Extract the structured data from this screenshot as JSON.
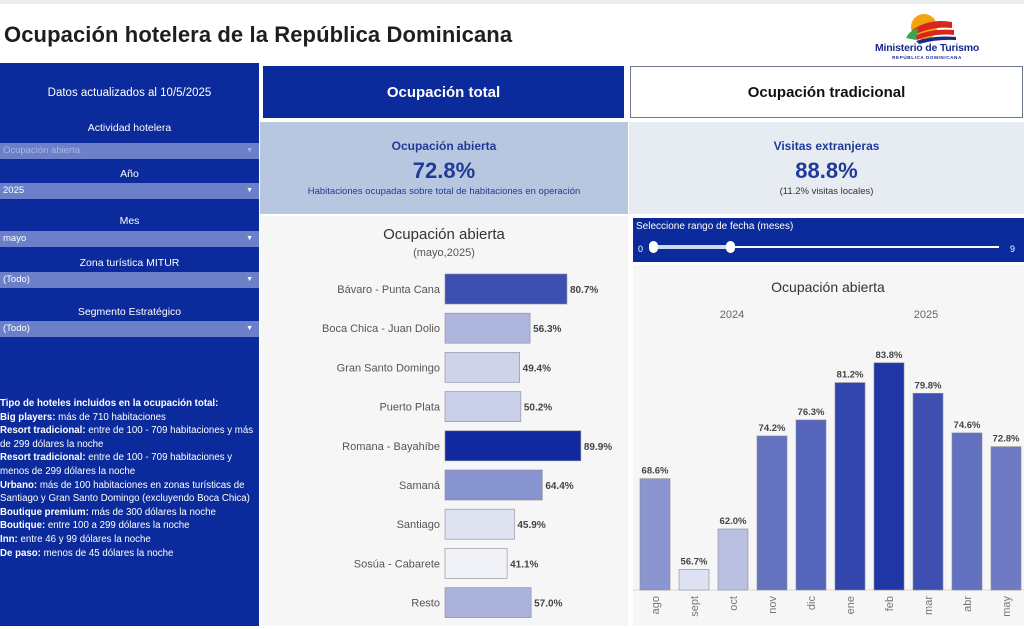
{
  "title": "Ocupación hotelera de la República Dominicana",
  "logo": {
    "name": "Ministerio de Turismo",
    "sub": "REPÚBLICA DOMINICANA"
  },
  "sidebar": {
    "updated": "Datos actualizados al  10/5/2025",
    "filters": [
      {
        "label": "Actividad hotelera",
        "value": "Ocupación abierta",
        "dim": true
      },
      {
        "label": "Año",
        "value": "2025",
        "dim": false
      },
      {
        "label": "Mes",
        "value": "mayo",
        "dim": false
      },
      {
        "label": "Zona turística MITUR",
        "value": "(Todo)",
        "dim": false
      },
      {
        "label": "Segmento Estratégico",
        "value": "(Todo)",
        "dim": false
      }
    ],
    "notes_title": "Tipo de hoteles incluidos en la ocupación total:",
    "notes": [
      {
        "b": "Big players:",
        "t": " más de 710 habitaciones"
      },
      {
        "b": "Resort tradicional:",
        "t": " entre de  100 - 709 habitaciones y más de 299 dólares la noche"
      },
      {
        "b": "Resort tradicional:",
        "t": " entre de 100 - 709 habitaciones y menos de 299 dólares la noche"
      },
      {
        "b": "Urbano:",
        "t": " más de 100 habitaciones en zonas turísticas de Santiago y Gran Santo Domingo (excluyendo Boca Chica)"
      },
      {
        "b": "Boutique premium:",
        "t": " más de 300 dólares la noche"
      },
      {
        "b": "Boutique:",
        "t": " entre 100 a 299 dólares la noche"
      },
      {
        "b": "Inn:",
        "t": " entre 46 y 99 dólares la noche"
      },
      {
        "b": "De paso:",
        "t": " menos de 45 dólares la noche"
      }
    ]
  },
  "tabs": {
    "total": "Ocupación total",
    "tradicional": "Ocupación tradicional"
  },
  "kpi_left": {
    "title": "Ocupación abierta",
    "value": "72.8%",
    "sub": "Habitaciones ocupadas sobre total de habitaciones en operación"
  },
  "kpi_right": {
    "title": "Visitas extranjeras",
    "value": "88.8%",
    "sub": "(11.2% visitas locales)"
  },
  "range": {
    "label": "Seleccione rango de fecha (meses)",
    "min": "0",
    "max": "9",
    "low": 0,
    "high": 2
  },
  "chart_data": [
    {
      "type": "bar",
      "orientation": "horizontal",
      "title": "Ocupación abierta",
      "subtitle": "(mayo,2025)",
      "categories": [
        "Bávaro - Punta Cana",
        "Boca Chica - Juan Dolio",
        "Gran Santo Domingo",
        "Puerto Plata",
        "Romana - Bayahíbe",
        "Samaná",
        "Santiago",
        "Sosúa - Cabarete",
        "Resto"
      ],
      "values": [
        80.7,
        56.3,
        49.4,
        50.2,
        89.9,
        64.4,
        45.9,
        41.1,
        57.0
      ],
      "labels": [
        "80.7%",
        "56.3%",
        "49.4%",
        "50.2%",
        "89.9%",
        "64.4%",
        "45.9%",
        "41.1%",
        "57.0%"
      ],
      "xlim": [
        0,
        100
      ]
    },
    {
      "type": "bar",
      "title": "Ocupación abierta",
      "groups": [
        "2024",
        "2025"
      ],
      "categories": [
        "ago",
        "sept",
        "oct",
        "nov",
        "dic",
        "ene",
        "feb",
        "mar",
        "abr",
        "may"
      ],
      "years": [
        "2024",
        "2024",
        "2024",
        "2024",
        "2024",
        "2025",
        "2025",
        "2025",
        "2025",
        "2025"
      ],
      "values": [
        68.6,
        56.7,
        62.0,
        74.2,
        76.3,
        81.2,
        83.8,
        79.8,
        74.6,
        72.8
      ],
      "labels": [
        "68.6%",
        "56.7%",
        "62.0%",
        "74.2%",
        "76.3%",
        "81.2%",
        "83.8%",
        "79.8%",
        "74.6%",
        "72.8%"
      ],
      "ylim": [
        54,
        86
      ]
    }
  ]
}
